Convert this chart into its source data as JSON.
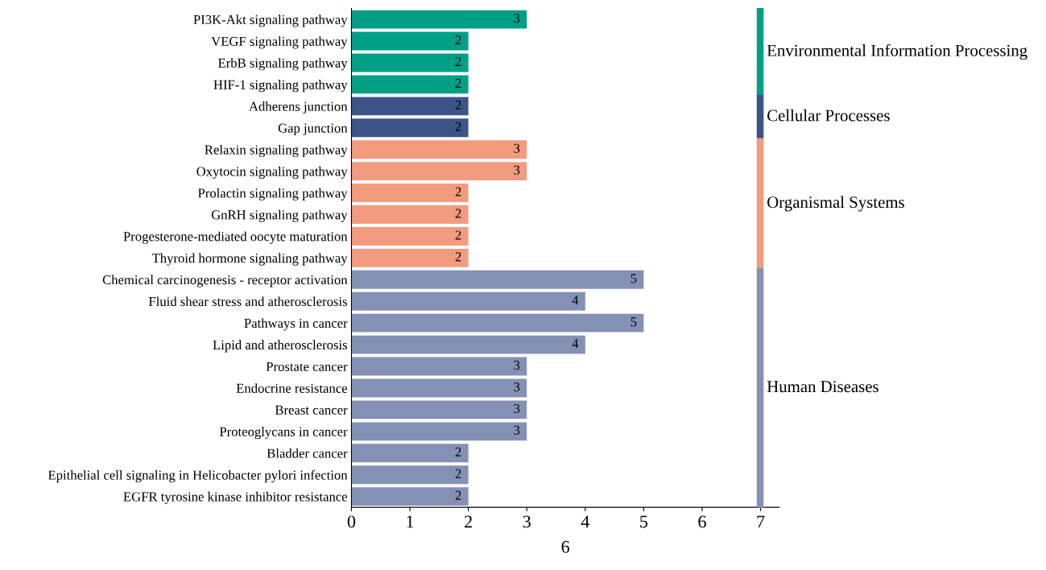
{
  "chart_data": {
    "type": "bar",
    "orientation": "horizontal",
    "xlabel": "6",
    "categories": [
      "PI3K-Akt signaling pathway",
      "VEGF signaling pathway",
      "ErbB signaling pathway",
      "HIF-1 signaling pathway",
      "Adherens junction",
      "Gap junction",
      "Relaxin signaling pathway",
      "Oxytocin signaling pathway",
      "Prolactin signaling pathway",
      "GnRH signaling pathway",
      "Progesterone-mediated oocyte maturation",
      "Thyroid hormone signaling pathway",
      "Chemical carcinogenesis - receptor activation",
      "Fluid shear stress and atherosclerosis",
      "Pathways in cancer",
      "Lipid and atherosclerosis",
      "Prostate cancer",
      "Endocrine resistance",
      "Breast cancer",
      "Proteoglycans in cancer",
      "Bladder cancer",
      "Epithelial cell signaling in Helicobacter pylori infection",
      "EGFR tyrosine kinase inhibitor resistance"
    ],
    "series": [
      {
        "name": "Environmental Information Processing",
        "color": "#00a087",
        "values": [
          3,
          2,
          2,
          2,
          null,
          null,
          null,
          null,
          null,
          null,
          null,
          null,
          null,
          null,
          null,
          null,
          null,
          null,
          null,
          null,
          null,
          null,
          null
        ]
      },
      {
        "name": "Cellular Processes",
        "color": "#3c5488",
        "values": [
          null,
          null,
          null,
          null,
          2,
          2,
          null,
          null,
          null,
          null,
          null,
          null,
          null,
          null,
          null,
          null,
          null,
          null,
          null,
          null,
          null,
          null,
          null
        ]
      },
      {
        "name": "Organismal Systems",
        "color": "#f39b7f",
        "values": [
          null,
          null,
          null,
          null,
          null,
          null,
          3,
          3,
          2,
          2,
          2,
          2,
          null,
          null,
          null,
          null,
          null,
          null,
          null,
          null,
          null,
          null,
          null
        ]
      },
      {
        "name": "Human Diseases",
        "color": "#8491b4",
        "values": [
          null,
          null,
          null,
          null,
          null,
          null,
          null,
          null,
          null,
          null,
          null,
          null,
          5,
          4,
          5,
          4,
          3,
          3,
          3,
          3,
          2,
          2,
          2
        ]
      }
    ],
    "xlim": [
      0,
      7.32
    ],
    "xticks": [
      0,
      1,
      2,
      3,
      4,
      5,
      6,
      7
    ],
    "data_labels": true,
    "legend": "right",
    "grid": false
  }
}
